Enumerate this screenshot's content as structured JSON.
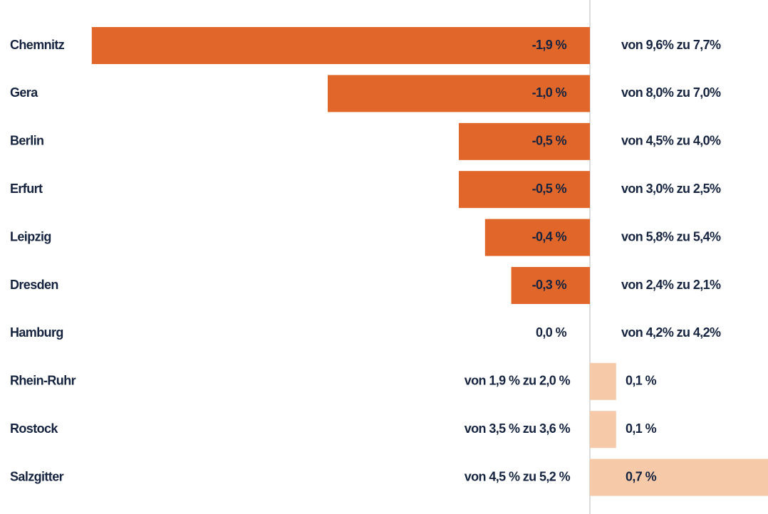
{
  "chart_data": {
    "type": "bar",
    "categories": [
      "Chemnitz",
      "Gera",
      "Berlin",
      "Erfurt",
      "Leipzig",
      "Dresden",
      "Hamburg",
      "Rhein-Ruhr",
      "Rostock",
      "Salzgitter"
    ],
    "values": [
      -1.9,
      -1.0,
      -0.5,
      -0.5,
      -0.4,
      -0.3,
      0.0,
      0.1,
      0.1,
      0.7
    ],
    "value_labels": [
      "-1,9 %",
      "-1,0 %",
      "-0,5 %",
      "-0,5 %",
      "-0,4 %",
      "-0,3 %",
      "0,0 %",
      "0,1 %",
      "0,1 %",
      "0,7 %"
    ],
    "annotations": [
      "von 9,6% zu 7,7%",
      "von 8,0% zu 7,0%",
      "von 4,5% zu 4,0%",
      "von 3,0% zu 2,5%",
      "von 5,8% zu 5,4%",
      "von 2,4% zu 2,1%",
      "von 4,2% zu 4,2%",
      "von 1,9 % zu 2,0 %",
      "von 3,5 % zu 3,6 %",
      "von 4,5 % zu 5,2 %"
    ],
    "negative_color": "#e0662a",
    "positive_color": "#f6caa9"
  }
}
